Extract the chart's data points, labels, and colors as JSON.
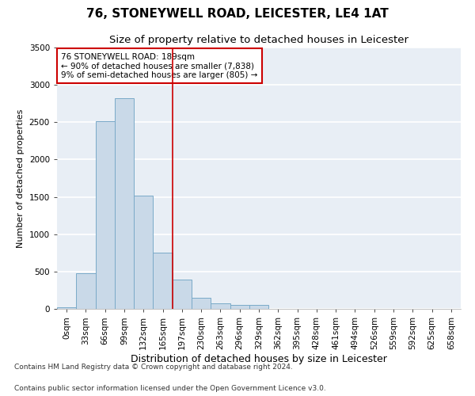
{
  "title1": "76, STONEYWELL ROAD, LEICESTER, LE4 1AT",
  "title2": "Size of property relative to detached houses in Leicester",
  "xlabel": "Distribution of detached houses by size in Leicester",
  "ylabel": "Number of detached properties",
  "footnote1": "Contains HM Land Registry data © Crown copyright and database right 2024.",
  "footnote2": "Contains public sector information licensed under the Open Government Licence v3.0.",
  "bin_labels": [
    "0sqm",
    "33sqm",
    "66sqm",
    "99sqm",
    "132sqm",
    "165sqm",
    "197sqm",
    "230sqm",
    "263sqm",
    "296sqm",
    "329sqm",
    "362sqm",
    "395sqm",
    "428sqm",
    "461sqm",
    "494sqm",
    "526sqm",
    "559sqm",
    "592sqm",
    "625sqm",
    "658sqm"
  ],
  "bar_heights": [
    20,
    480,
    2510,
    2820,
    1520,
    750,
    390,
    145,
    75,
    55,
    55,
    0,
    0,
    0,
    0,
    0,
    0,
    0,
    0,
    0,
    0
  ],
  "bar_color": "#c9d9e8",
  "bar_edge_color": "#7aaac8",
  "annotation_box_text": "76 STONEYWELL ROAD: 189sqm\n← 90% of detached houses are smaller (7,838)\n9% of semi-detached houses are larger (805) →",
  "annotation_box_color": "#cc0000",
  "vline_x": 5.5,
  "vline_color": "#cc0000",
  "ylim": [
    0,
    3500
  ],
  "yticks": [
    0,
    500,
    1000,
    1500,
    2000,
    2500,
    3000,
    3500
  ],
  "background_color": "#e8eef5",
  "grid_color": "#ffffff",
  "title1_fontsize": 11,
  "title2_fontsize": 9.5,
  "xlabel_fontsize": 9,
  "ylabel_fontsize": 8,
  "tick_fontsize": 7.5,
  "annotation_fontsize": 7.5,
  "footnote_fontsize": 6.5
}
